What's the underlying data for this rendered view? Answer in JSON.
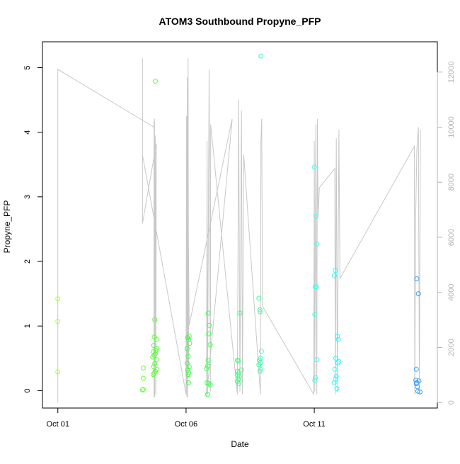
{
  "chart_data": {
    "type": "scatter",
    "title": "ATOM3 Southbound Propyne_PFP",
    "xlabel": "Date",
    "ylabel": "Propyne_PFP",
    "xlim": [
      -0.6,
      14.8
    ],
    "ylim": [
      -0.27,
      5.4
    ],
    "y2lim": [
      -200,
      13100
    ],
    "x_ticks": [
      {
        "value": 0,
        "label": "Oct 01"
      },
      {
        "value": 5,
        "label": "Oct 06"
      },
      {
        "value": 10,
        "label": "Oct 11"
      }
    ],
    "y_ticks": [
      0,
      1,
      2,
      3,
      4,
      5
    ],
    "y2_ticks": [
      0,
      2000,
      4000,
      6000,
      8000,
      10000,
      12000
    ],
    "grid": false,
    "series": [
      {
        "role": "points",
        "points": [
          {
            "x": 0.0,
            "y": 1.42,
            "color": "#a6ff3f"
          },
          {
            "x": 0.0,
            "y": 1.07,
            "color": "#a6ff3f"
          },
          {
            "x": 0.0,
            "y": 0.29,
            "color": "#a6ff3f"
          },
          {
            "x": 3.33,
            "y": 0.35,
            "color": "#6dff3a"
          },
          {
            "x": 3.33,
            "y": 0.19,
            "color": "#6dff3a"
          },
          {
            "x": 3.33,
            "y": 0.02,
            "color": "#6dff3a"
          },
          {
            "x": 3.3,
            "y": 0.01,
            "color": "#6dff3a"
          },
          {
            "x": 3.8,
            "y": 4.79,
            "color": "#5cff38"
          },
          {
            "x": 3.78,
            "y": 1.1,
            "color": "#5cff38"
          },
          {
            "x": 3.76,
            "y": 0.83,
            "color": "#5cff38"
          },
          {
            "x": 3.84,
            "y": 0.79,
            "color": "#5cff38"
          },
          {
            "x": 3.74,
            "y": 0.7,
            "color": "#5cff38"
          },
          {
            "x": 3.86,
            "y": 0.65,
            "color": "#5cff38"
          },
          {
            "x": 3.82,
            "y": 0.62,
            "color": "#5cff38"
          },
          {
            "x": 3.72,
            "y": 0.6,
            "color": "#5cff38"
          },
          {
            "x": 3.8,
            "y": 0.57,
            "color": "#5cff38"
          },
          {
            "x": 3.76,
            "y": 0.55,
            "color": "#5cff38"
          },
          {
            "x": 3.7,
            "y": 0.52,
            "color": "#5cff38"
          },
          {
            "x": 3.84,
            "y": 0.48,
            "color": "#5cff38"
          },
          {
            "x": 3.78,
            "y": 0.42,
            "color": "#5cff38"
          },
          {
            "x": 3.74,
            "y": 0.37,
            "color": "#5cff38"
          },
          {
            "x": 3.86,
            "y": 0.33,
            "color": "#5cff38"
          },
          {
            "x": 3.8,
            "y": 0.3,
            "color": "#5cff38"
          },
          {
            "x": 3.76,
            "y": 0.27,
            "color": "#5cff38"
          },
          {
            "x": 3.72,
            "y": 0.25,
            "color": "#5cff38"
          },
          {
            "x": 5.12,
            "y": 0.84,
            "color": "#3dff45"
          },
          {
            "x": 5.06,
            "y": 0.82,
            "color": "#3dff45"
          },
          {
            "x": 5.1,
            "y": 0.79,
            "color": "#3dff45"
          },
          {
            "x": 5.14,
            "y": 0.73,
            "color": "#3dff45"
          },
          {
            "x": 5.04,
            "y": 0.65,
            "color": "#3dff45"
          },
          {
            "x": 5.08,
            "y": 0.53,
            "color": "#3dff45"
          },
          {
            "x": 5.04,
            "y": 0.42,
            "color": "#3dff45"
          },
          {
            "x": 5.12,
            "y": 0.37,
            "color": "#3dff45"
          },
          {
            "x": 5.06,
            "y": 0.32,
            "color": "#3dff45"
          },
          {
            "x": 5.1,
            "y": 0.28,
            "color": "#3dff45"
          },
          {
            "x": 5.08,
            "y": 0.25,
            "color": "#3dff45"
          },
          {
            "x": 5.1,
            "y": 0.12,
            "color": "#3dff45"
          },
          {
            "x": 5.86,
            "y": 1.2,
            "color": "#3dff55"
          },
          {
            "x": 5.9,
            "y": 1.01,
            "color": "#3dff55"
          },
          {
            "x": 5.88,
            "y": 0.88,
            "color": "#3dff55"
          },
          {
            "x": 5.94,
            "y": 0.71,
            "color": "#3dff55"
          },
          {
            "x": 5.86,
            "y": 0.47,
            "color": "#3dff55"
          },
          {
            "x": 5.84,
            "y": 0.38,
            "color": "#3dff55"
          },
          {
            "x": 5.8,
            "y": 0.34,
            "color": "#3dff55"
          },
          {
            "x": 5.82,
            "y": 0.12,
            "color": "#3dff55"
          },
          {
            "x": 5.88,
            "y": 0.11,
            "color": "#3dff55"
          },
          {
            "x": 5.94,
            "y": 0.09,
            "color": "#3dff55"
          },
          {
            "x": 5.84,
            "y": -0.06,
            "color": "#3dff55"
          },
          {
            "x": 7.1,
            "y": 1.2,
            "color": "#3dff7a"
          },
          {
            "x": 7.0,
            "y": 0.47,
            "color": "#3dff7a"
          },
          {
            "x": 7.04,
            "y": 0.46,
            "color": "#3dff7a"
          },
          {
            "x": 7.16,
            "y": 0.32,
            "color": "#3dff7a"
          },
          {
            "x": 7.0,
            "y": 0.3,
            "color": "#3dff7a"
          },
          {
            "x": 7.06,
            "y": 0.27,
            "color": "#3dff7a"
          },
          {
            "x": 7.02,
            "y": 0.24,
            "color": "#3dff7a"
          },
          {
            "x": 7.08,
            "y": 0.22,
            "color": "#3dff7a"
          },
          {
            "x": 7.04,
            "y": 0.18,
            "color": "#3dff7a"
          },
          {
            "x": 7.0,
            "y": 0.14,
            "color": "#3dff7a"
          },
          {
            "x": 7.06,
            "y": 0.11,
            "color": "#3dff7a"
          },
          {
            "x": 7.92,
            "y": 5.18,
            "color": "#3dffad"
          },
          {
            "x": 7.84,
            "y": 1.43,
            "color": "#3dffad"
          },
          {
            "x": 7.88,
            "y": 1.25,
            "color": "#3dffad"
          },
          {
            "x": 7.88,
            "y": 1.22,
            "color": "#3dffad"
          },
          {
            "x": 7.94,
            "y": 0.61,
            "color": "#3dffad"
          },
          {
            "x": 7.9,
            "y": 0.5,
            "color": "#3dffad"
          },
          {
            "x": 7.86,
            "y": 0.47,
            "color": "#3dffad"
          },
          {
            "x": 7.9,
            "y": 0.43,
            "color": "#3dffad"
          },
          {
            "x": 7.84,
            "y": 0.4,
            "color": "#3dffad"
          },
          {
            "x": 7.92,
            "y": 0.33,
            "color": "#3dffad"
          },
          {
            "x": 7.88,
            "y": 0.3,
            "color": "#3dffad"
          },
          {
            "x": 10.0,
            "y": 3.46,
            "color": "#3dfff2"
          },
          {
            "x": 10.06,
            "y": 2.7,
            "color": "#3dfff2"
          },
          {
            "x": 10.1,
            "y": 2.27,
            "color": "#3dfff2"
          },
          {
            "x": 10.04,
            "y": 1.61,
            "color": "#3dfff2"
          },
          {
            "x": 10.08,
            "y": 1.61,
            "color": "#3dfff2"
          },
          {
            "x": 10.02,
            "y": 1.18,
            "color": "#3dfff2"
          },
          {
            "x": 10.1,
            "y": 0.48,
            "color": "#3dfff2"
          },
          {
            "x": 10.04,
            "y": 0.2,
            "color": "#3dfff2"
          },
          {
            "x": 10.02,
            "y": 0.16,
            "color": "#3dfff2"
          },
          {
            "x": 10.82,
            "y": 1.86,
            "color": "#3df2ff"
          },
          {
            "x": 10.78,
            "y": 1.78,
            "color": "#3df2ff"
          },
          {
            "x": 10.9,
            "y": 0.84,
            "color": "#3df2ff"
          },
          {
            "x": 10.94,
            "y": 0.79,
            "color": "#3df2ff"
          },
          {
            "x": 10.84,
            "y": 0.5,
            "color": "#3df2ff"
          },
          {
            "x": 10.96,
            "y": 0.45,
            "color": "#3df2ff"
          },
          {
            "x": 10.92,
            "y": 0.43,
            "color": "#3df2ff"
          },
          {
            "x": 10.8,
            "y": 0.33,
            "color": "#3df2ff"
          },
          {
            "x": 10.86,
            "y": 0.22,
            "color": "#3df2ff"
          },
          {
            "x": 10.82,
            "y": 0.18,
            "color": "#3df2ff"
          },
          {
            "x": 10.78,
            "y": 0.12,
            "color": "#3df2ff"
          },
          {
            "x": 10.88,
            "y": 0.03,
            "color": "#3df2ff"
          },
          {
            "x": 14.0,
            "y": 1.73,
            "color": "#3d9fff"
          },
          {
            "x": 14.06,
            "y": 1.5,
            "color": "#3d9fff"
          },
          {
            "x": 13.98,
            "y": 0.33,
            "color": "#3d9fff"
          },
          {
            "x": 13.96,
            "y": 0.16,
            "color": "#3d9fff"
          },
          {
            "x": 14.08,
            "y": 0.15,
            "color": "#3d9fff"
          },
          {
            "x": 14.0,
            "y": 0.12,
            "color": "#3d9fff"
          },
          {
            "x": 13.98,
            "y": 0.11,
            "color": "#3d9fff"
          },
          {
            "x": 14.02,
            "y": 0.06,
            "color": "#3d9fff"
          },
          {
            "x": 14.04,
            "y": -0.01,
            "color": "#3d9fff"
          },
          {
            "x": 14.12,
            "y": -0.02,
            "color": "#3d9fff"
          }
        ]
      },
      {
        "role": "line",
        "axis": "right",
        "color": "#c8c8c8",
        "points": [
          [
            0.0,
            0
          ],
          [
            0.0,
            12100
          ],
          [
            3.75,
            10000
          ],
          [
            3.75,
            200
          ],
          [
            3.75,
            10200
          ],
          [
            3.76,
            200
          ],
          [
            3.77,
            10300
          ],
          [
            3.78,
            200
          ],
          [
            3.8,
            9700
          ],
          [
            3.82,
            300
          ],
          [
            3.84,
            9400
          ],
          [
            3.3,
            6500
          ],
          [
            3.3,
            12500
          ],
          [
            3.3,
            9000
          ],
          [
            5.0,
            300
          ],
          [
            5.02,
            10400
          ],
          [
            5.03,
            200
          ],
          [
            5.05,
            11800
          ],
          [
            5.06,
            200
          ],
          [
            5.08,
            12500
          ],
          [
            5.1,
            1200
          ],
          [
            5.08,
            2500
          ],
          [
            5.06,
            9500
          ],
          [
            5.12,
            2800
          ],
          [
            6.8,
            10300
          ],
          [
            5.8,
            200
          ],
          [
            5.82,
            9500
          ],
          [
            5.84,
            300
          ],
          [
            5.9,
            12100
          ],
          [
            5.95,
            400
          ],
          [
            5.96,
            10100
          ],
          [
            7.0,
            300
          ],
          [
            7.05,
            11000
          ],
          [
            7.1,
            400
          ],
          [
            7.16,
            10600
          ],
          [
            7.2,
            300
          ],
          [
            7.25,
            9000
          ],
          [
            7.9,
            300
          ],
          [
            7.92,
            9500
          ],
          [
            7.95,
            10300
          ],
          [
            7.98,
            3500
          ],
          [
            9.98,
            300
          ],
          [
            10.0,
            9500
          ],
          [
            10.02,
            400
          ],
          [
            10.06,
            10100
          ],
          [
            10.1,
            300
          ],
          [
            10.12,
            10300
          ],
          [
            10.15,
            6800
          ],
          [
            10.2,
            7800
          ],
          [
            10.8,
            8500
          ],
          [
            10.82,
            300
          ],
          [
            10.86,
            9600
          ],
          [
            10.9,
            400
          ],
          [
            10.96,
            9900
          ],
          [
            11.0,
            4500
          ],
          [
            13.9,
            9300
          ],
          [
            13.92,
            300
          ],
          [
            13.95,
            6500
          ],
          [
            14.0,
            9200
          ],
          [
            14.06,
            10000
          ],
          [
            14.1,
            300
          ],
          [
            14.14,
            9900
          ]
        ]
      }
    ]
  }
}
